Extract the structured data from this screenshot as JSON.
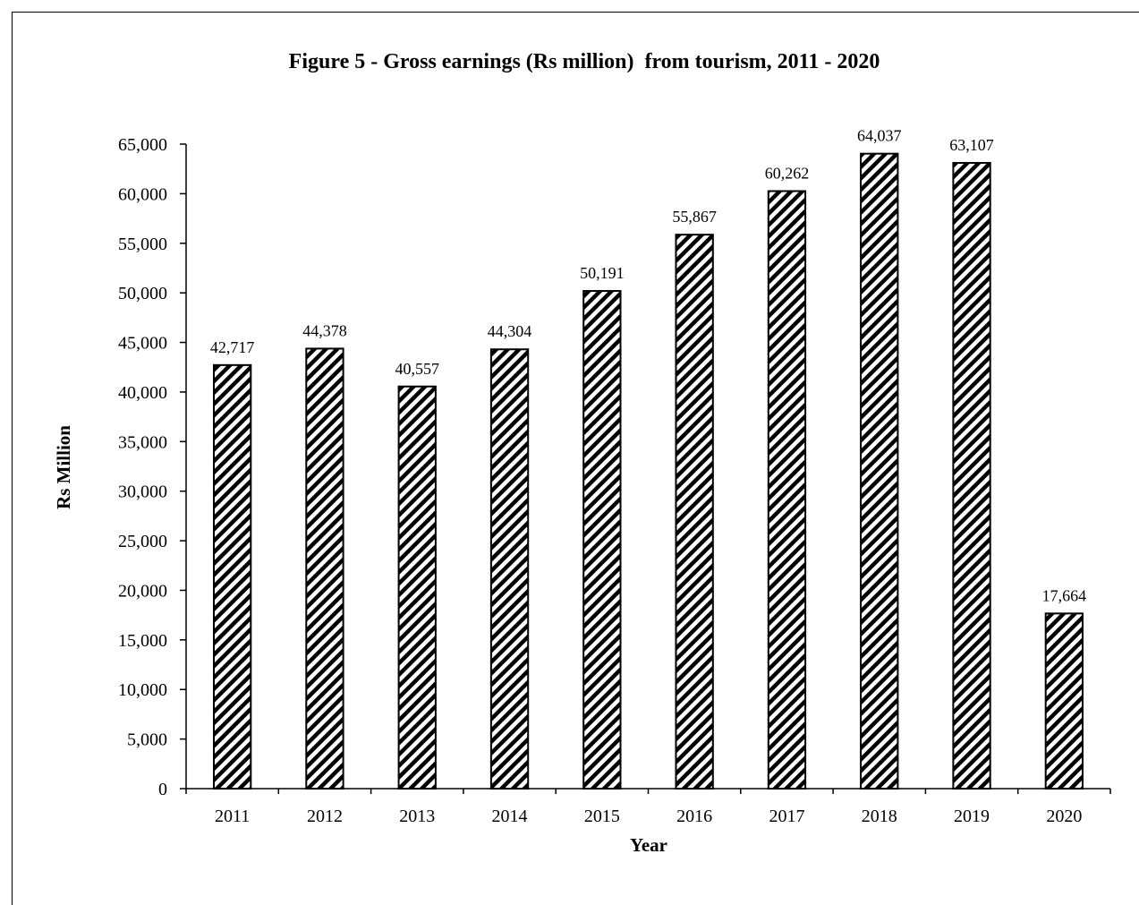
{
  "chart_data": {
    "type": "bar",
    "title": "Figure 5 - Gross earnings (Rs million)  from tourism, 2011 - 2020",
    "xlabel": "Year",
    "ylabel": "Rs Million",
    "categories": [
      "2011",
      "2012",
      "2013",
      "2014",
      "2015",
      "2016",
      "2017",
      "2018",
      "2019",
      "2020"
    ],
    "values": [
      42717,
      44378,
      40557,
      44304,
      50191,
      55867,
      60262,
      64037,
      63107,
      17664
    ],
    "data_labels": [
      "42,717",
      "44,378",
      "40,557",
      "44,304",
      "50,191",
      "55,867",
      "60,262",
      "64,037",
      "63,107",
      "17,664"
    ],
    "ylim": [
      0,
      65000
    ],
    "yticks": [
      0,
      5000,
      10000,
      15000,
      20000,
      25000,
      30000,
      35000,
      40000,
      45000,
      50000,
      55000,
      60000,
      65000
    ],
    "ytick_labels": [
      "0",
      "5,000",
      "10,000",
      "15,000",
      "20,000",
      "25,000",
      "30,000",
      "35,000",
      "40,000",
      "45,000",
      "50,000",
      "55,000",
      "60,000",
      "65,000"
    ],
    "grid": false,
    "legend": "none",
    "bar_fill": "diagonal-hatch",
    "colors": {
      "bar_stroke": "#000000",
      "hatch": "#000000",
      "background": "#ffffff"
    }
  }
}
